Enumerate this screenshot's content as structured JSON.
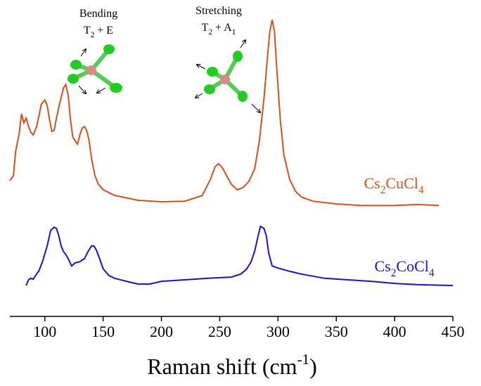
{
  "chart_data": {
    "type": "line",
    "xlabel_parts": [
      "Raman shift (cm",
      "-1",
      ")"
    ],
    "annotations": [
      "Bending",
      "T2 + E",
      "Stretching",
      "T2 + A1"
    ],
    "xlim": [
      70,
      450
    ],
    "xticks": [
      100,
      150,
      200,
      250,
      300,
      350,
      400,
      450
    ],
    "ylim": [
      0,
      100
    ],
    "series": [
      {
        "name": "Cs2CuCl4",
        "color": "#d4501c",
        "x": [
          70,
          73,
          75,
          78,
          80,
          82,
          84,
          86,
          88,
          90,
          93,
          95,
          97,
          100,
          102,
          104,
          106,
          108,
          110,
          113,
          116,
          118,
          120,
          122,
          124,
          126,
          128,
          130,
          132,
          134,
          136,
          138,
          140,
          143,
          146,
          150,
          160,
          180,
          200,
          220,
          235,
          242,
          246,
          249,
          252,
          256,
          260,
          265,
          270,
          275,
          280,
          284,
          288,
          291,
          293,
          295,
          297,
          299,
          302,
          305,
          310,
          315,
          320,
          330,
          350,
          370,
          400,
          420,
          438
        ],
        "values": [
          44.9,
          46.5,
          54.7,
          60.5,
          67.0,
          64.0,
          65.6,
          62.8,
          60.9,
          60.0,
          62.8,
          66.3,
          70.2,
          71.6,
          69.8,
          65.1,
          61.2,
          61.6,
          65.6,
          70.9,
          75.6,
          76.7,
          73.3,
          65.1,
          59.3,
          58.1,
          57.0,
          60.0,
          62.3,
          62.8,
          61.4,
          58.1,
          52.3,
          46.5,
          43.7,
          41.9,
          40.0,
          38.4,
          37.9,
          38.1,
          40.0,
          45.3,
          49.5,
          50.5,
          49.3,
          46.5,
          43.7,
          41.9,
          42.6,
          44.7,
          48.8,
          58.1,
          72.1,
          86.0,
          94.2,
          98.1,
          94.2,
          81.4,
          65.1,
          53.5,
          45.3,
          41.4,
          39.5,
          38.1,
          37.2,
          36.7,
          36.7,
          37.0,
          36.7
        ]
      },
      {
        "name": "Cs2CoCl4",
        "color": "#1414c8",
        "x": [
          84,
          86,
          88,
          90,
          92,
          95,
          98,
          102,
          105,
          108,
          110,
          112,
          114,
          116,
          118,
          120,
          123,
          126,
          130,
          134,
          137,
          140,
          142,
          144,
          147,
          150,
          155,
          160,
          170,
          180,
          190,
          200,
          220,
          240,
          260,
          268,
          273,
          277,
          280,
          283,
          285,
          288,
          290,
          292,
          295,
          300,
          310,
          320,
          340,
          360,
          380,
          400,
          420,
          450
        ],
        "values": [
          10.2,
          12.1,
          12.6,
          12.3,
          13.5,
          15.1,
          18.1,
          23.3,
          28.4,
          29.5,
          29.1,
          26.7,
          23.3,
          21.4,
          20.5,
          19.1,
          16.7,
          17.7,
          18.1,
          19.1,
          21.4,
          23.3,
          23.3,
          22.1,
          19.1,
          15.8,
          13.5,
          12.6,
          11.6,
          10.7,
          10.7,
          11.6,
          12.1,
          12.6,
          13.0,
          14.0,
          15.6,
          18.1,
          21.6,
          26.7,
          29.8,
          29.1,
          26.7,
          20.9,
          16.7,
          16.0,
          14.9,
          14.0,
          12.6,
          12.1,
          11.6,
          10.9,
          10.5,
          10.2
        ]
      }
    ]
  }
}
